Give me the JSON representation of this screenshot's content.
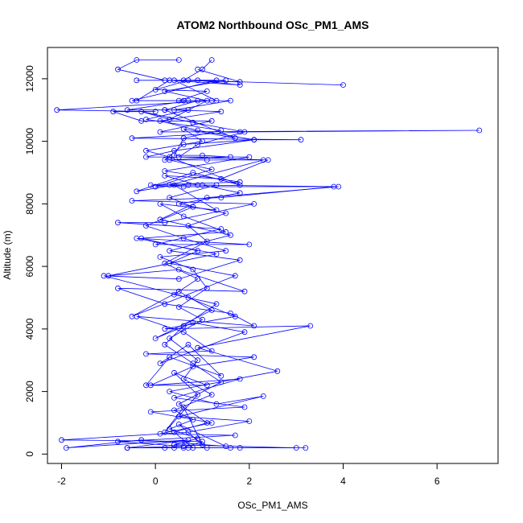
{
  "chart_data": {
    "type": "line",
    "title": "ATOM2 Northbound OSc_PM1_AMS",
    "xlabel": "OSc_PM1_AMS",
    "ylabel": "Altitude (m)",
    "xlim": [
      -2.3,
      7.3
    ],
    "ylim": [
      -300,
      13000
    ],
    "xticks": [
      -2,
      0,
      2,
      4,
      6
    ],
    "yticks": [
      0,
      2000,
      4000,
      6000,
      8000,
      10000,
      12000
    ],
    "xtick_labels": [
      "-2",
      "0",
      "2",
      "4",
      "6"
    ],
    "ytick_labels": [
      "0",
      "2000",
      "4000",
      "6000",
      "8000",
      "10000",
      "12000"
    ],
    "grid": false,
    "legend": "none",
    "series": [
      {
        "color": "#0000ff",
        "marker": "open-circle",
        "points": [
          [
            0.4,
            200
          ],
          [
            1.6,
            200
          ],
          [
            -0.6,
            200
          ],
          [
            0.7,
            450
          ],
          [
            -1.9,
            200
          ],
          [
            -0.3,
            450
          ],
          [
            1.5,
            250
          ],
          [
            0.5,
            950
          ],
          [
            1.0,
            300
          ],
          [
            0.6,
            1500
          ],
          [
            0.2,
            700
          ],
          [
            0.9,
            1900
          ],
          [
            0.4,
            2600
          ],
          [
            1.1,
            2200
          ],
          [
            -0.2,
            2200
          ],
          [
            0.3,
            3100
          ],
          [
            1.4,
            2500
          ],
          [
            0.7,
            3500
          ],
          [
            0.1,
            2900
          ],
          [
            1.9,
            3900
          ],
          [
            0.8,
            4200
          ],
          [
            0.0,
            3700
          ],
          [
            1.2,
            4600
          ],
          [
            0.5,
            5200
          ],
          [
            -0.5,
            4400
          ],
          [
            1.7,
            5700
          ],
          [
            0.3,
            6100
          ],
          [
            0.9,
            6500
          ],
          [
            -0.3,
            6900
          ],
          [
            1.5,
            7100
          ],
          [
            0.6,
            7600
          ],
          [
            0.1,
            8000
          ],
          [
            1.3,
            7800
          ],
          [
            0.4,
            8600
          ],
          [
            -0.4,
            8400
          ],
          [
            0.8,
            9000
          ],
          [
            1.8,
            8600
          ],
          [
            0.3,
            9500
          ],
          [
            -0.2,
            9700
          ],
          [
            1.0,
            10000
          ],
          [
            0.6,
            10400
          ],
          [
            1.7,
            10100
          ],
          [
            0.2,
            11000
          ],
          [
            -0.6,
            11000
          ],
          [
            0.7,
            11300
          ],
          [
            1.3,
            11300
          ],
          [
            0.4,
            11950
          ],
          [
            1.8,
            11900
          ],
          [
            0.9,
            12300
          ]
        ]
      },
      {
        "color": "#0000ff",
        "marker": "open-circle",
        "points": [
          [
            1.2,
            12600
          ],
          [
            1.0,
            12300
          ],
          [
            0.6,
            11950
          ],
          [
            1.5,
            11950
          ],
          [
            0.2,
            11600
          ],
          [
            1.1,
            11300
          ],
          [
            0.3,
            10700
          ],
          [
            -0.3,
            10950
          ],
          [
            0.8,
            10600
          ],
          [
            1.9,
            10300
          ],
          [
            0.9,
            9900
          ],
          [
            0.5,
            9500
          ],
          [
            2.4,
            9400
          ],
          [
            1.4,
            8800
          ],
          [
            0.2,
            8900
          ],
          [
            0.9,
            8600
          ],
          [
            3.9,
            8550
          ],
          [
            1.1,
            8200
          ],
          [
            0.1,
            7500
          ],
          [
            1.6,
            7000
          ],
          [
            0.3,
            6500
          ],
          [
            1.8,
            6200
          ],
          [
            0.5,
            5600
          ],
          [
            -1.1,
            5700
          ],
          [
            0.7,
            5000
          ],
          [
            1.7,
            4400
          ],
          [
            0.2,
            4000
          ],
          [
            3.3,
            4100
          ],
          [
            0.9,
            3400
          ],
          [
            2.6,
            2650
          ],
          [
            0.3,
            2000
          ],
          [
            1.3,
            1600
          ],
          [
            2.3,
            1850
          ],
          [
            0.5,
            1200
          ],
          [
            2.0,
            1050
          ],
          [
            0.7,
            700
          ],
          [
            -2.0,
            450
          ],
          [
            1.0,
            400
          ],
          [
            0.6,
            200
          ],
          [
            3.2,
            200
          ],
          [
            0.2,
            200
          ]
        ]
      },
      {
        "color": "#0000ff",
        "marker": "open-circle",
        "points": [
          [
            0.5,
            12600
          ],
          [
            -0.4,
            12600
          ],
          [
            -0.8,
            12300
          ],
          [
            0.2,
            11950
          ],
          [
            -0.4,
            11950
          ],
          [
            1.3,
            11950
          ],
          [
            -0.5,
            11300
          ],
          [
            0.6,
            11300
          ],
          [
            1.2,
            11300
          ],
          [
            -2.1,
            11000
          ],
          [
            0.0,
            10950
          ],
          [
            -0.9,
            10950
          ],
          [
            -0.3,
            10650
          ],
          [
            1.2,
            10650
          ],
          [
            0.1,
            10300
          ],
          [
            6.9,
            10350
          ],
          [
            1.8,
            10300
          ],
          [
            -0.5,
            10100
          ],
          [
            3.1,
            10050
          ],
          [
            2.1,
            10050
          ],
          [
            0.4,
            9700
          ],
          [
            -0.2,
            9500
          ],
          [
            2.0,
            9500
          ],
          [
            0.2,
            9050
          ],
          [
            1.8,
            8700
          ],
          [
            -0.1,
            8600
          ],
          [
            0.6,
            8550
          ],
          [
            3.8,
            8550
          ],
          [
            1.4,
            8200
          ],
          [
            -0.5,
            8100
          ],
          [
            2.1,
            8000
          ],
          [
            0.2,
            7400
          ],
          [
            -0.8,
            7400
          ],
          [
            1.4,
            7200
          ],
          [
            0.0,
            6700
          ],
          [
            2.0,
            6700
          ],
          [
            -0.4,
            6900
          ],
          [
            1.3,
            6400
          ],
          [
            -1.0,
            5700
          ],
          [
            0.5,
            5900
          ],
          [
            1.9,
            5200
          ],
          [
            -0.8,
            5300
          ],
          [
            0.2,
            4800
          ],
          [
            1.6,
            4500
          ],
          [
            2.1,
            4100
          ],
          [
            -0.4,
            4400
          ],
          [
            0.6,
            3900
          ],
          [
            1.2,
            3300
          ],
          [
            -0.2,
            3200
          ],
          [
            2.1,
            3100
          ],
          [
            0.8,
            2800
          ],
          [
            -0.1,
            2200
          ],
          [
            1.8,
            2400
          ],
          [
            0.4,
            1800
          ],
          [
            1.9,
            1500
          ],
          [
            -0.1,
            1350
          ],
          [
            1.2,
            1000
          ],
          [
            0.1,
            650
          ],
          [
            1.7,
            600
          ],
          [
            -0.8,
            400
          ],
          [
            0.6,
            250
          ],
          [
            -0.6,
            200
          ],
          [
            1.1,
            200
          ]
        ]
      },
      {
        "color": "#0000ff",
        "marker": "open-circle",
        "points": [
          [
            4.0,
            11800
          ],
          [
            0.7,
            11950
          ],
          [
            0.0,
            11650
          ],
          [
            1.1,
            11600
          ],
          [
            0.5,
            11300
          ],
          [
            0.9,
            11300
          ],
          [
            0.2,
            11000
          ],
          [
            0.7,
            11000
          ],
          [
            -0.2,
            10700
          ],
          [
            1.4,
            10350
          ],
          [
            0.6,
            10100
          ],
          [
            0.4,
            9550
          ],
          [
            1.0,
            9550
          ],
          [
            1.6,
            9500
          ],
          [
            0.3,
            9400
          ],
          [
            1.2,
            9100
          ],
          [
            0.0,
            8550
          ],
          [
            0.7,
            8600
          ],
          [
            1.3,
            8600
          ],
          [
            0.3,
            8200
          ],
          [
            0.8,
            7900
          ],
          [
            -0.2,
            7300
          ],
          [
            0.6,
            6900
          ],
          [
            1.5,
            6500
          ],
          [
            0.1,
            6300
          ],
          [
            0.8,
            5900
          ],
          [
            1.1,
            5300
          ],
          [
            0.5,
            4700
          ],
          [
            1.0,
            4300
          ],
          [
            0.3,
            3700
          ],
          [
            0.9,
            3000
          ],
          [
            0.6,
            2400
          ],
          [
            1.2,
            1900
          ],
          [
            0.4,
            1400
          ],
          [
            0.8,
            1100
          ],
          [
            0.3,
            800
          ],
          [
            0.9,
            500
          ],
          [
            0.4,
            300
          ],
          [
            3.0,
            200
          ],
          [
            1.8,
            200
          ],
          [
            0.7,
            200
          ],
          [
            -0.6,
            200
          ]
        ]
      },
      {
        "color": "#0000ff",
        "marker": "open-circle",
        "points": [
          [
            0.9,
            11950
          ],
          [
            1.8,
            11800
          ],
          [
            0.3,
            11950
          ],
          [
            -0.4,
            11300
          ],
          [
            1.6,
            11300
          ],
          [
            0.4,
            11000
          ],
          [
            1.4,
            10950
          ],
          [
            0.1,
            10650
          ],
          [
            0.9,
            10350
          ],
          [
            2.1,
            10050
          ],
          [
            0.6,
            9900
          ],
          [
            0.2,
            9400
          ],
          [
            1.1,
            9400
          ],
          [
            2.3,
            9400
          ],
          [
            0.3,
            8600
          ],
          [
            1.0,
            8600
          ],
          [
            1.8,
            8350
          ],
          [
            0.5,
            8000
          ],
          [
            1.5,
            7700
          ],
          [
            0.7,
            7300
          ],
          [
            1.1,
            6800
          ],
          [
            0.2,
            6100
          ],
          [
            0.9,
            5600
          ],
          [
            0.4,
            5100
          ],
          [
            1.3,
            4800
          ],
          [
            0.6,
            4100
          ],
          [
            0.2,
            3500
          ],
          [
            0.8,
            2900
          ],
          [
            1.4,
            2300
          ],
          [
            0.5,
            1600
          ],
          [
            1.1,
            1000
          ],
          [
            0.4,
            700
          ],
          [
            0.8,
            200
          ]
        ]
      }
    ]
  }
}
